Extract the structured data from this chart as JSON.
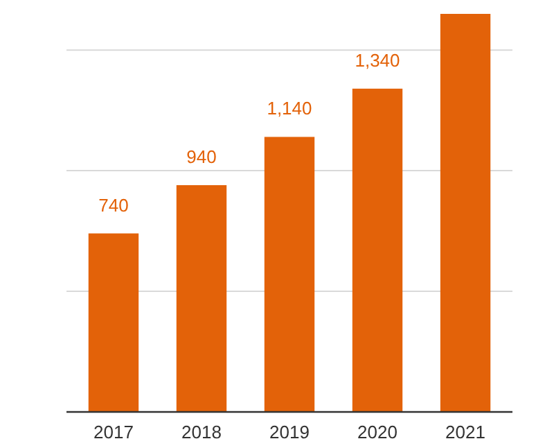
{
  "chart_data": {
    "type": "bar",
    "categories": [
      "2017",
      "2018",
      "2019",
      "2020",
      "2021"
    ],
    "values": [
      740,
      940,
      1140,
      1340,
      1650
    ],
    "value_labels": [
      "740",
      "940",
      "1,140",
      "1,340",
      null
    ],
    "color": "#e36209",
    "yticks": [
      {
        "value": 0,
        "label": null
      },
      {
        "value": 500,
        "label": null
      },
      {
        "value": 1000,
        "label": null
      },
      {
        "value": 1500,
        "label": null
      }
    ],
    "grid": "y",
    "tick_labels": "x"
  }
}
